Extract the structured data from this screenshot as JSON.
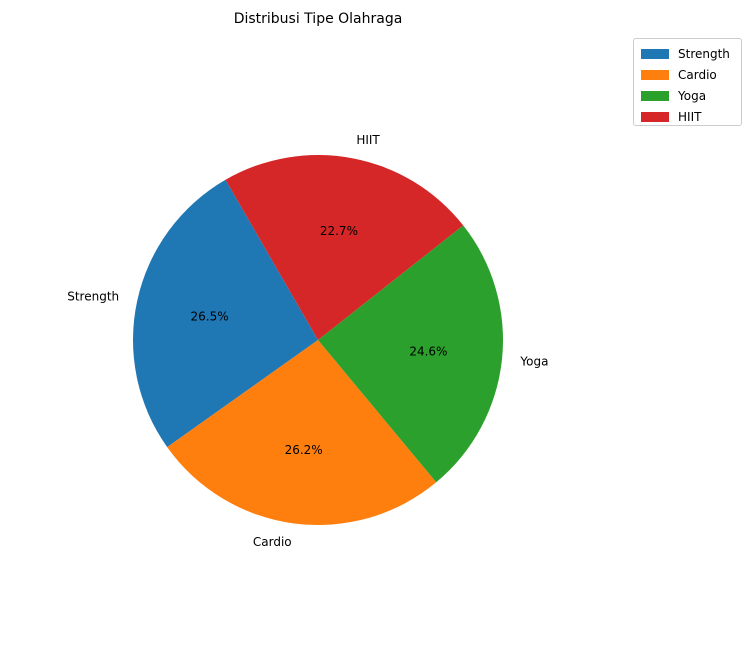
{
  "chart_data": {
    "type": "pie",
    "title": "Distribusi Tipe Olahraga",
    "categories": [
      "Strength",
      "Cardio",
      "Yoga",
      "HIIT"
    ],
    "values": [
      26.5,
      26.2,
      24.6,
      22.7
    ],
    "value_labels": [
      "26.5%",
      "26.2%",
      "24.6%",
      "22.7%"
    ],
    "colors": [
      "#1f77b4",
      "#ff7f0e",
      "#2ca02c",
      "#d62728"
    ],
    "start_angle_deg": 120,
    "legend_position": "top-right",
    "legend": [
      "Strength",
      "Cardio",
      "Yoga",
      "HIIT"
    ]
  }
}
